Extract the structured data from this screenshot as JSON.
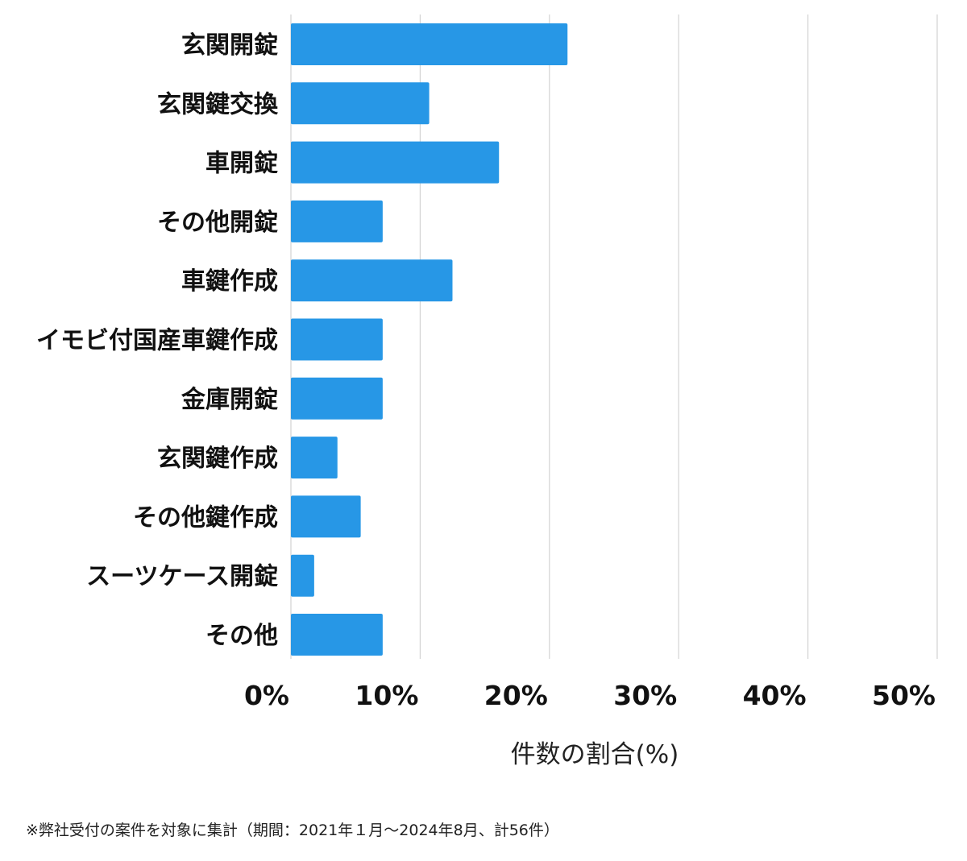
{
  "chart_data": {
    "type": "bar",
    "orientation": "horizontal",
    "categories": [
      "玄関開錠",
      "玄関鍵交換",
      "車開錠",
      "その他開錠",
      "車鍵作成",
      "イモビ付国産車鍵作成",
      "金庫開錠",
      "玄関鍵作成",
      "その他鍵作成",
      "スーツケース開錠",
      "その他"
    ],
    "values": [
      21.4,
      10.7,
      16.1,
      7.1,
      12.5,
      7.1,
      7.1,
      3.6,
      5.4,
      1.8,
      7.1
    ],
    "xlim": [
      0,
      50
    ],
    "xticks": [
      "0%",
      "10%",
      "20%",
      "30%",
      "40%",
      "50%"
    ],
    "xlabel": "件数の割合(%)",
    "ylabel": "",
    "title": "",
    "grid": true,
    "bar_color": "#2797e6",
    "grid_color": "#d3d3d3"
  },
  "footnote": "※弊社受付の案件を対象に集計（期間：2021年１月〜2024年8月、計56件）"
}
